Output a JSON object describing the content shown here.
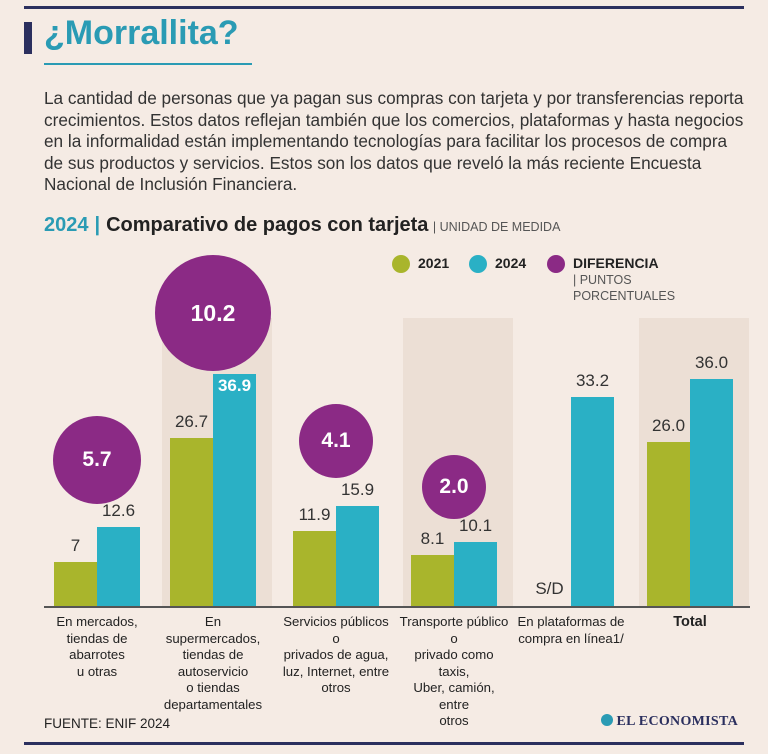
{
  "header": {
    "title": "¿Morrallita?",
    "intro": "La cantidad de personas que ya pagan sus compras con tarjeta y por transferencias reporta crecimientos. Estos datos reflejan también que los comercios, plataformas y hasta negocios en la informalidad están implementando tecnologías para facilitar los procesos de compra de sus productos y servicios. Estos son los datos que reveló la más reciente Encuesta Nacional de Inclusión Financiera."
  },
  "subtitle": {
    "year": "2024",
    "separator": "|",
    "title": "Comparativo de pagos con tarjeta",
    "unit": "| UNIDAD DE MEDIDA"
  },
  "legend": {
    "s2021": "2021",
    "s2024": "2024",
    "diff": "DIFERENCIA",
    "diff_note": "| PUNTOS PORCENTUALES"
  },
  "colors": {
    "s2021": "#a9b52c",
    "s2024": "#2ab0c5",
    "diff": "#8b2a85",
    "title": "#2a9bb4",
    "rule": "#2b2f5e"
  },
  "chart_data": {
    "type": "bar",
    "categories": [
      "En mercados, tiendas de abarrotes u otras",
      "En supermercados, tiendas de autoservicio o tiendas departamentales",
      "Servicios públicos o privados de agua, luz, Internet, entre otros",
      "Transporte público o privado como taxis, Uber, camión, entre otros",
      "En plataformas de compra en línea1/",
      "Total"
    ],
    "series": [
      {
        "name": "2021",
        "values": [
          7,
          26.7,
          11.9,
          8.1,
          null,
          26.0
        ]
      },
      {
        "name": "2024",
        "values": [
          12.6,
          36.9,
          15.9,
          10.1,
          33.2,
          36.0
        ]
      },
      {
        "name": "DIFERENCIA",
        "values": [
          5.7,
          10.2,
          4.1,
          2.0,
          null,
          null
        ]
      }
    ],
    "labels_2021": [
      "7",
      "26.7",
      "11.9",
      "8.1",
      "S/D",
      "26.0"
    ],
    "labels_2024": [
      "12.6",
      "36.9",
      "15.9",
      "10.1",
      "33.2",
      "36.0"
    ],
    "labels_diff": [
      "5.7",
      "10.2",
      "4.1",
      "2.0"
    ]
  },
  "cat_lines": [
    [
      "En mercados,",
      "tiendas de abarrotes",
      "u otras"
    ],
    [
      "En supermercados,",
      "tiendas de",
      "autoservicio",
      "o tiendas",
      "departamentales"
    ],
    [
      "Servicios públicos o",
      "privados de agua,",
      "luz, Internet, entre",
      "otros"
    ],
    [
      "Transporte público o",
      "privado como taxis,",
      "Uber, camión, entre",
      "otros"
    ],
    [
      "En plataformas de",
      "compra en línea1/"
    ],
    [
      "Total"
    ]
  ],
  "footer": {
    "source": "FUENTE: ENIF 2024",
    "brand": "EL ECONOMISTA"
  }
}
